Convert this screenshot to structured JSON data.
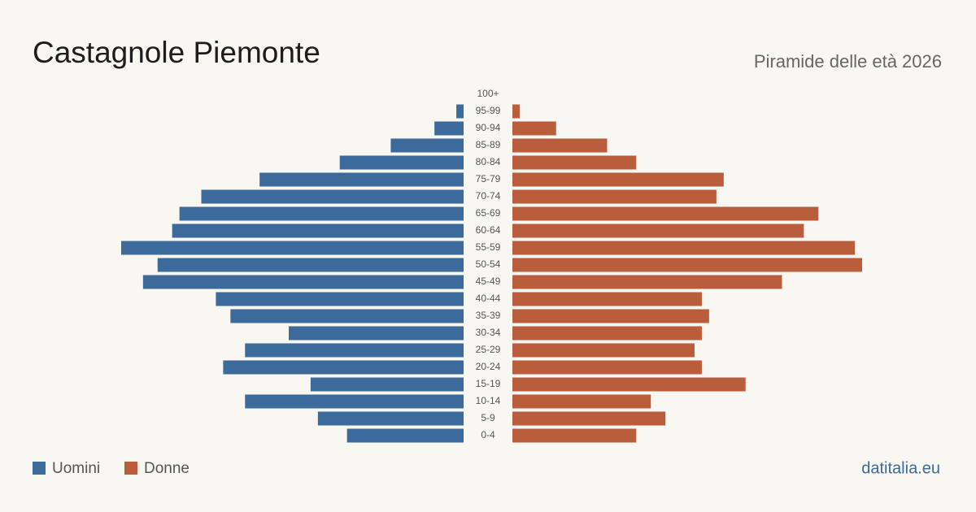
{
  "chart_data": {
    "type": "pyramid",
    "title": "Castagnole Piemonte",
    "subtitle": "Piramide delle età 2026",
    "source": "datitalia.eu",
    "categories": [
      "100+",
      "95-99",
      "90-94",
      "85-89",
      "80-84",
      "75-79",
      "70-74",
      "65-69",
      "60-64",
      "55-59",
      "50-54",
      "45-49",
      "40-44",
      "35-39",
      "30-34",
      "25-29",
      "20-24",
      "15-19",
      "10-14",
      "5-9",
      "0-4"
    ],
    "series": [
      {
        "name": "Uomini",
        "color": "#3c6a9b",
        "values": [
          0,
          1,
          4,
          10,
          17,
          28,
          36,
          39,
          40,
          47,
          42,
          44,
          34,
          32,
          24,
          30,
          33,
          21,
          30,
          20,
          16
        ]
      },
      {
        "name": "Donne",
        "color": "#b95d3c",
        "values": [
          0,
          1,
          6,
          13,
          17,
          29,
          28,
          42,
          40,
          47,
          48,
          37,
          26,
          27,
          26,
          25,
          26,
          32,
          19,
          21,
          17
        ]
      }
    ]
  }
}
